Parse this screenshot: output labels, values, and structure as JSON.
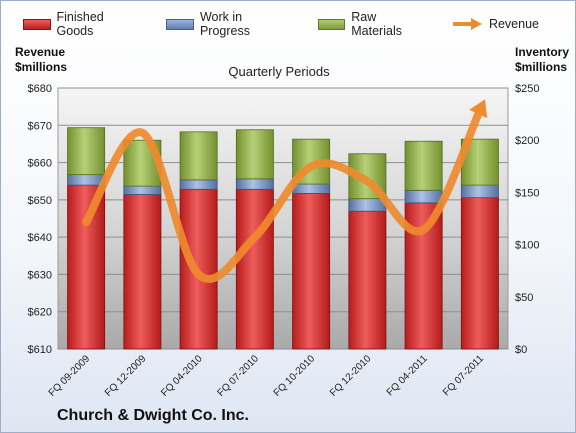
{
  "legend": {
    "finished": "Finished Goods",
    "wip": "Work in Progress",
    "raw": "Raw Materials",
    "revenue": "Revenue"
  },
  "labels": {
    "left_axis_title_1": "Revenue",
    "left_axis_title_2": "$millions",
    "right_axis_title_1": "Inventory",
    "right_axis_title_2": "$millions",
    "chart_title": "Quarterly Periods",
    "company": "Church & Dwight Co. Inc."
  },
  "colors": {
    "finished": "#d42a2a",
    "wip": "#6f8fc2",
    "raw": "#8fae4a",
    "revenue": "#ef8a2e"
  },
  "chart_data": {
    "type": "bar",
    "title": "Quarterly Periods",
    "categories": [
      "FQ 09-2009",
      "FQ 12-2009",
      "FQ 04-2010",
      "FQ 07-2010",
      "FQ 10-2010",
      "FQ 12-2010",
      "FQ 04-2011",
      "FQ 07-2011"
    ],
    "stacked": true,
    "series": [
      {
        "name": "Finished Goods",
        "axis": "right",
        "values": [
          157,
          148,
          153,
          153,
          149,
          132,
          140,
          145
        ]
      },
      {
        "name": "Work in Progress",
        "axis": "right",
        "values": [
          10,
          8,
          9,
          10,
          9,
          12,
          12,
          12
        ]
      },
      {
        "name": "Raw Materials",
        "axis": "right",
        "values": [
          45,
          44,
          46,
          47,
          43,
          43,
          47,
          44
        ]
      },
      {
        "name": "Revenue",
        "type": "line",
        "axis": "left",
        "values": [
          644,
          668,
          630,
          640,
          659,
          655,
          642,
          674
        ]
      }
    ],
    "y_left": {
      "label": "Revenue $millions",
      "min": 610,
      "max": 680,
      "ticks": [
        "$610",
        "$620",
        "$630",
        "$640",
        "$650",
        "$660",
        "$670",
        "$680"
      ]
    },
    "y_right": {
      "label": "Inventory $millions",
      "min": 0,
      "max": 250,
      "ticks": [
        "$0",
        "$50",
        "$100",
        "$150",
        "$200",
        "$250"
      ]
    },
    "grid": true,
    "legend": "top"
  }
}
